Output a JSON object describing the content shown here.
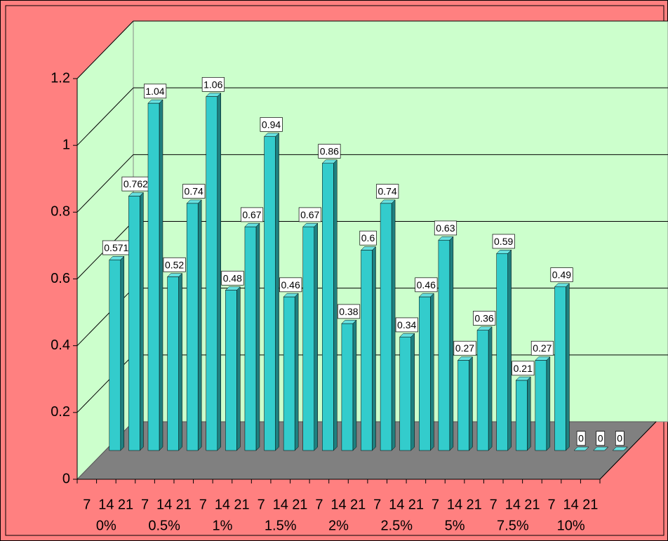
{
  "chart_data": {
    "type": "bar3d",
    "categories": [
      "7",
      "14",
      "21",
      "7",
      "14",
      "21",
      "7",
      "14",
      "21",
      "7",
      "14",
      "21",
      "7",
      "14",
      "21",
      "7",
      "14",
      "21",
      "7",
      "14",
      "21",
      "7",
      "14",
      "21",
      "7",
      "14",
      "21"
    ],
    "groups": [
      "0%",
      "0.5%",
      "1%",
      "1.5%",
      "2%",
      "2.5%",
      "5%",
      "7.5%",
      "10%"
    ],
    "values": [
      0.571,
      0.762,
      1.04,
      0.52,
      0.74,
      1.06,
      0.48,
      0.67,
      0.94,
      0.46,
      0.67,
      0.86,
      0.38,
      0.6,
      0.74,
      0.34,
      0.46,
      0.63,
      0.27,
      0.36,
      0.59,
      0.21,
      0.27,
      0.49,
      0,
      0,
      0
    ],
    "color": "#33CCCC",
    "ylim": [
      0,
      1.2
    ],
    "yticks": [
      0,
      0.2,
      0.4,
      0.6,
      0.8,
      1,
      1.2
    ],
    "grid": true
  }
}
